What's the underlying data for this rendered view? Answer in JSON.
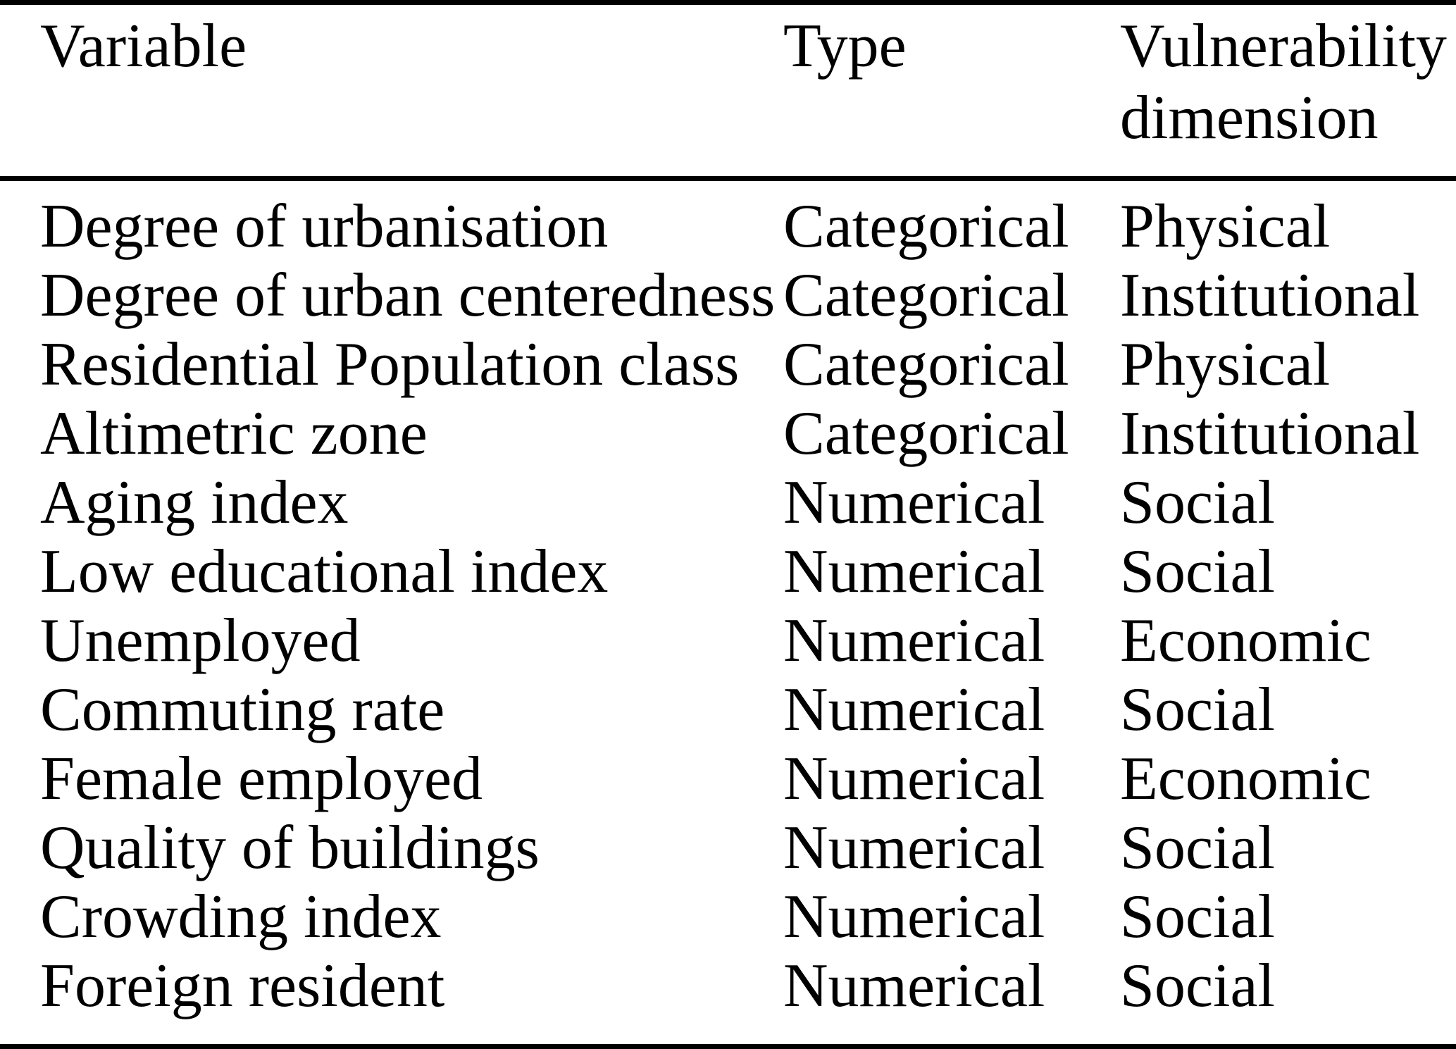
{
  "table": {
    "headers": [
      "Variable",
      "Type",
      "Vulnerability dimension"
    ],
    "rows": [
      {
        "variable": "Degree of urbanisation",
        "type": "Categorical",
        "dimension": "Physical"
      },
      {
        "variable": "Degree of urban centeredness",
        "type": "Categorical",
        "dimension": "Institutional"
      },
      {
        "variable": "Residential Population class",
        "type": "Categorical",
        "dimension": "Physical"
      },
      {
        "variable": "Altimetric zone",
        "type": "Categorical",
        "dimension": "Institutional"
      },
      {
        "variable": "Aging index",
        "type": "Numerical",
        "dimension": "Social"
      },
      {
        "variable": "Low educational index",
        "type": "Numerical",
        "dimension": "Social"
      },
      {
        "variable": "Unemployed",
        "type": "Numerical",
        "dimension": "Economic"
      },
      {
        "variable": "Commuting rate",
        "type": "Numerical",
        "dimension": "Social"
      },
      {
        "variable": "Female employed",
        "type": "Numerical",
        "dimension": "Economic"
      },
      {
        "variable": "Quality of buildings",
        "type": "Numerical",
        "dimension": "Social"
      },
      {
        "variable": "Crowding index",
        "type": "Numerical",
        "dimension": "Social"
      },
      {
        "variable": "Foreign resident",
        "type": "Numerical",
        "dimension": "Social"
      }
    ],
    "colors": {
      "text": "#000000",
      "background": "#ffffff",
      "rule": "#000000"
    }
  }
}
